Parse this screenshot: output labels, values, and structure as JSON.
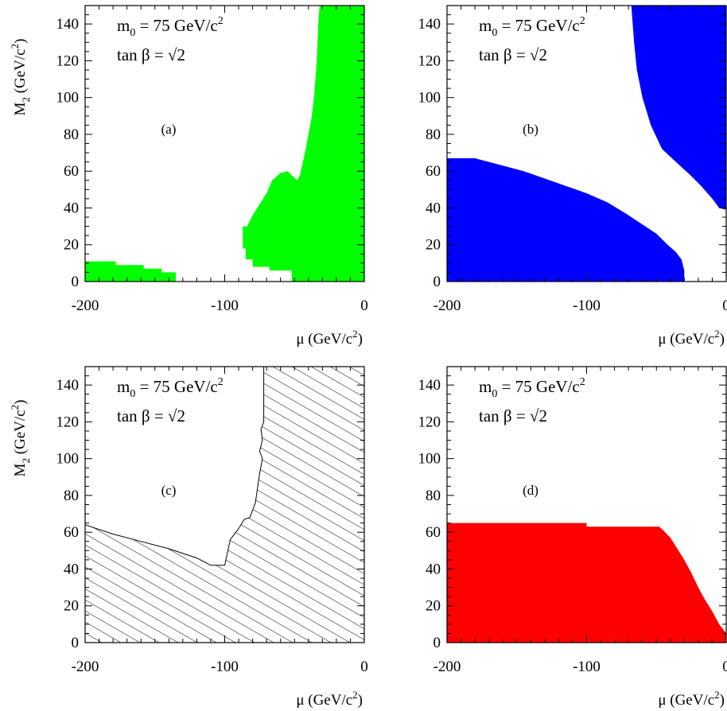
{
  "chart_data": [
    {
      "panel": "a",
      "type": "area",
      "label": "(a)",
      "annotation": {
        "line1_main": "m",
        "line1_sub": "0",
        "line1_rest": " = 75 GeV/c",
        "line1_sup": "2",
        "line2": "tan β = √2"
      },
      "xlabel": {
        "main": "μ (GeV/c",
        "sup": "2",
        "end": ")"
      },
      "ylabel": {
        "main": "M",
        "sub": "2",
        "rest": " (GeV/c",
        "sup": "2",
        "end": ")"
      },
      "xlim": [
        -200,
        0
      ],
      "ylim": [
        0,
        150
      ],
      "xticks": [
        -200,
        -100,
        0
      ],
      "xtick_labels": [
        "-200",
        "-100",
        "0"
      ],
      "yticks": [
        0,
        20,
        40,
        60,
        80,
        100,
        120,
        140
      ],
      "ytick_labels": [
        "0",
        "20",
        "40",
        "60",
        "80",
        "100",
        "120",
        "140"
      ],
      "fill_color": "#00ff00",
      "regions": [
        [
          [
            -200,
            0
          ],
          [
            -200,
            11
          ],
          [
            -178,
            11
          ],
          [
            -178,
            9
          ],
          [
            -158,
            9
          ],
          [
            -158,
            7
          ],
          [
            -145,
            7
          ],
          [
            -145,
            5
          ],
          [
            -135,
            5
          ],
          [
            -135,
            0
          ]
        ],
        [
          [
            -52,
            0
          ],
          [
            -52,
            6
          ],
          [
            -68,
            6
          ],
          [
            -68,
            8
          ],
          [
            -80,
            8
          ],
          [
            -80,
            12
          ],
          [
            -85,
            12
          ],
          [
            -85,
            18
          ],
          [
            -87,
            18
          ],
          [
            -87,
            30
          ],
          [
            -84,
            30
          ],
          [
            -80,
            36
          ],
          [
            -75,
            42
          ],
          [
            -70,
            48
          ],
          [
            -66,
            55
          ],
          [
            -60,
            59
          ],
          [
            -55,
            60
          ],
          [
            -48,
            55
          ],
          [
            -46,
            58
          ],
          [
            -42,
            72
          ],
          [
            -38,
            88
          ],
          [
            -36,
            100
          ],
          [
            -34,
            120
          ],
          [
            -33,
            140
          ],
          [
            -32,
            150
          ],
          [
            0,
            150
          ],
          [
            0,
            0
          ]
        ]
      ]
    },
    {
      "panel": "b",
      "type": "area",
      "label": "(b)",
      "annotation": {
        "line1_main": "m",
        "line1_sub": "0",
        "line1_rest": " = 75 GeV/c",
        "line1_sup": "2",
        "line2": "tan β = √2"
      },
      "xlabel": {
        "main": "μ (GeV/c",
        "sup": "2",
        "end": ")"
      },
      "xlim": [
        -200,
        0
      ],
      "ylim": [
        0,
        150
      ],
      "xticks": [
        -200,
        -100,
        0
      ],
      "xtick_labels": [
        "-200",
        "-100",
        "0"
      ],
      "yticks": [
        0,
        20,
        40,
        60,
        80,
        100,
        120,
        140
      ],
      "ytick_labels": [
        "0",
        "20",
        "40",
        "60",
        "80",
        "100",
        "120",
        "140"
      ],
      "fill_color": "#0000ff",
      "regions": [
        [
          [
            -200,
            0
          ],
          [
            -200,
            67
          ],
          [
            -180,
            67
          ],
          [
            -170,
            65
          ],
          [
            -160,
            63
          ],
          [
            -145,
            60
          ],
          [
            -130,
            56
          ],
          [
            -115,
            52
          ],
          [
            -100,
            48
          ],
          [
            -85,
            43
          ],
          [
            -72,
            37
          ],
          [
            -60,
            31
          ],
          [
            -50,
            26
          ],
          [
            -42,
            20
          ],
          [
            -36,
            16
          ],
          [
            -32,
            12
          ],
          [
            -30,
            6
          ],
          [
            -30,
            0
          ]
        ],
        [
          [
            -68,
            150
          ],
          [
            -66,
            130
          ],
          [
            -64,
            115
          ],
          [
            -60,
            100
          ],
          [
            -54,
            85
          ],
          [
            -46,
            72
          ],
          [
            -36,
            65
          ],
          [
            -26,
            58
          ],
          [
            -18,
            52
          ],
          [
            -10,
            45
          ],
          [
            -5,
            40
          ],
          [
            0,
            39
          ],
          [
            0,
            150
          ]
        ]
      ]
    },
    {
      "panel": "c",
      "type": "area",
      "label": "(c)",
      "annotation": {
        "line1_main": "m",
        "line1_sub": "0",
        "line1_rest": " = 75 GeV/c",
        "line1_sup": "2",
        "line2": "tan β = √2"
      },
      "xlabel": {
        "main": "μ (GeV/c",
        "sup": "2",
        "end": ")"
      },
      "ylabel": {
        "main": "M",
        "sub": "2",
        "rest": " (GeV/c",
        "sup": "2",
        "end": ")"
      },
      "xlim": [
        -200,
        0
      ],
      "ylim": [
        0,
        150
      ],
      "xticks": [
        -200,
        -100,
        0
      ],
      "xtick_labels": [
        "-200",
        "-100",
        "0"
      ],
      "yticks": [
        0,
        20,
        40,
        60,
        80,
        100,
        120,
        140
      ],
      "ytick_labels": [
        "0",
        "20",
        "40",
        "60",
        "80",
        "100",
        "120",
        "140"
      ],
      "hatched": true,
      "boundary": [
        [
          -200,
          64
        ],
        [
          -180,
          59
        ],
        [
          -160,
          55
        ],
        [
          -140,
          51
        ],
        [
          -120,
          46
        ],
        [
          -110,
          42
        ],
        [
          -100,
          42
        ],
        [
          -96,
          56
        ],
        [
          -90,
          62
        ],
        [
          -86,
          67
        ],
        [
          -82,
          68
        ],
        [
          -78,
          76
        ],
        [
          -75,
          92
        ],
        [
          -73,
          100
        ],
        [
          -75,
          104
        ],
        [
          -73,
          110
        ],
        [
          -74,
          116
        ],
        [
          -72,
          120
        ],
        [
          -72,
          150
        ]
      ]
    },
    {
      "panel": "d",
      "type": "area",
      "label": "(d)",
      "annotation": {
        "line1_main": "m",
        "line1_sub": "0",
        "line1_rest": " = 75 GeV/c",
        "line1_sup": "2",
        "line2": "tan β = √2"
      },
      "xlabel": {
        "main": "μ (GeV/c",
        "sup": "2",
        "end": ")"
      },
      "xlim": [
        -200,
        0
      ],
      "ylim": [
        0,
        150
      ],
      "xticks": [
        -200,
        -100,
        0
      ],
      "xtick_labels": [
        "-200",
        "-100",
        "0"
      ],
      "yticks": [
        0,
        20,
        40,
        60,
        80,
        100,
        120,
        140
      ],
      "ytick_labels": [
        "0",
        "20",
        "40",
        "60",
        "80",
        "100",
        "120",
        "140"
      ],
      "fill_color": "#ff0000",
      "regions": [
        [
          [
            -200,
            0
          ],
          [
            -200,
            65
          ],
          [
            -100,
            65
          ],
          [
            -100,
            63
          ],
          [
            -48,
            63
          ],
          [
            -45,
            61
          ],
          [
            -40,
            57
          ],
          [
            -35,
            51
          ],
          [
            -30,
            45
          ],
          [
            -25,
            38
          ],
          [
            -20,
            30
          ],
          [
            -15,
            23
          ],
          [
            -10,
            17
          ],
          [
            -5,
            10
          ],
          [
            0,
            5
          ],
          [
            0,
            0
          ]
        ]
      ]
    }
  ]
}
